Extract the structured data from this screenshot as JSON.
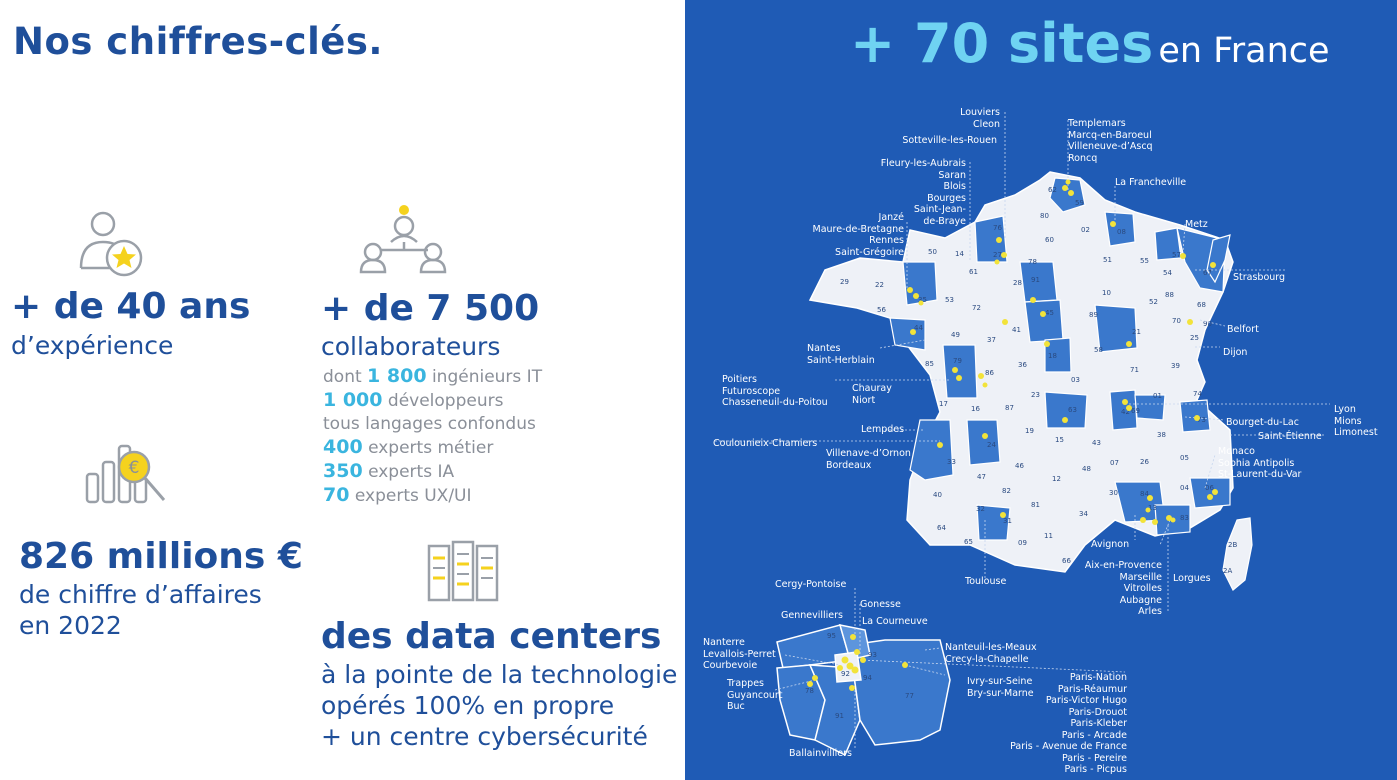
{
  "heading": "Nos chiffres-clés.",
  "stats": {
    "experience": {
      "big": "+ de 40 ans",
      "sub": "d’expérience",
      "icon": "user-star-icon"
    },
    "employees": {
      "big": "+ de 7 500",
      "sub": "collaborateurs",
      "icon": "team-network-icon",
      "details": [
        {
          "pre": "dont ",
          "num": "1 800",
          "text": " ingénieurs IT"
        },
        {
          "pre": "",
          "num": "1 000",
          "text": " développeurs"
        },
        {
          "pre": "",
          "num": "",
          "text": "tous langages confondus"
        },
        {
          "pre": "",
          "num": "400",
          "text": " experts métier"
        },
        {
          "pre": "",
          "num": "350",
          "text": " experts IA"
        },
        {
          "pre": "",
          "num": "70",
          "text": " experts UX/UI"
        }
      ]
    },
    "revenue": {
      "big": "826 millions €",
      "sub1": "de chiffre d’affaires",
      "sub2": "en 2022",
      "icon": "chart-euro-magnifier-icon"
    },
    "datacenters": {
      "big": "des data centers",
      "sub1": "à la pointe de la technologie",
      "sub2": "opérés 100% en propre",
      "sub3": "+ un centre cybersécurité",
      "icon": "server-rack-icon"
    }
  },
  "map": {
    "title_strong": "+ 70 sites",
    "title_light": "en France",
    "colors": {
      "background": "#1f5bb5",
      "region_light": "#eef1f7",
      "region_dark": "#3a78cc",
      "site": "#f2e33a",
      "accent": "#6fd3f2"
    },
    "departments": [
      "62",
      "59",
      "80",
      "76",
      "27",
      "60",
      "02",
      "08",
      "57",
      "67",
      "55",
      "51",
      "54",
      "88",
      "68",
      "14",
      "61",
      "50",
      "29",
      "22",
      "35",
      "56",
      "53",
      "72",
      "28",
      "78",
      "91",
      "45",
      "41",
      "10",
      "52",
      "89",
      "21",
      "70",
      "25",
      "90",
      "39",
      "71",
      "58",
      "18",
      "37",
      "49",
      "44",
      "85",
      "79",
      "86",
      "36",
      "03",
      "23",
      "87",
      "16",
      "17",
      "24",
      "19",
      "63",
      "15",
      "42",
      "69",
      "01",
      "74",
      "73",
      "38",
      "43",
      "07",
      "26",
      "05",
      "48",
      "04",
      "06",
      "83",
      "84",
      "13",
      "30",
      "12",
      "34",
      "46",
      "47",
      "33",
      "40",
      "64",
      "65",
      "32",
      "82",
      "81",
      "11",
      "09",
      "31",
      "66",
      "2B",
      "2A",
      "95",
      "93",
      "92",
      "94",
      "77"
    ],
    "labels": {
      "louviers": [
        "Louviers",
        "Cleon"
      ],
      "sotteville": [
        "Sotteville-les-Rouen"
      ],
      "templemars": [
        "Templemars",
        "Marcq-en-Baroeul",
        "Villeneuve-d’Ascq",
        "Roncq"
      ],
      "lafranche": [
        "La Francheville"
      ],
      "fleury": [
        "Fleury-les-Aubrais",
        "Saran",
        "Blois",
        "Bourges",
        "Saint-Jean-",
        "de-Braye"
      ],
      "janze": [
        "Janzé",
        "Maure-de-Bretagne",
        "Rennes",
        "Saint-Grégoire"
      ],
      "metz": [
        "Metz"
      ],
      "strasbourg": [
        "Strasbourg"
      ],
      "belfort": [
        "Belfort"
      ],
      "dijon": [
        "Dijon"
      ],
      "nantes": [
        "Nantes",
        "Saint-Herblain"
      ],
      "poitiers": [
        "Poitiers",
        "Futuroscope",
        "Chasseneuil-du-Poitou"
      ],
      "chauray": [
        "Chauray",
        "Niort"
      ],
      "lyon": [
        "Lyon",
        "Mions",
        "Limonest"
      ],
      "bourget": [
        "Bourget-du-Lac"
      ],
      "stetienne": [
        "Saint-Étienne"
      ],
      "lempdes": [
        "Lempdes"
      ],
      "coulounieix": [
        "Coulounieix-Chamiers"
      ],
      "villenave": [
        "Villenave-d’Ornon",
        "Bordeaux"
      ],
      "monaco": [
        "Monaco",
        "Sophia Antipolis",
        "St-Laurent-du-Var"
      ],
      "avignon": [
        "Avignon"
      ],
      "aix": [
        "Aix-en-Provence",
        "Marseille",
        "Vitrolles",
        "Aubagne",
        "Arles"
      ],
      "lorgues": [
        "Lorgues"
      ],
      "toulouse": [
        "Toulouse"
      ],
      "cergy": [
        "Cergy-Pontoise"
      ],
      "gonesse": [
        "Gonesse"
      ],
      "gennevilliers": [
        "Gennevilliers"
      ],
      "lacourneuve": [
        "La Courneuve"
      ],
      "nanterre": [
        "Nanterre",
        "Levallois-Perret",
        "Courbevoie"
      ],
      "nanteuil": [
        "Nanteuil-les-Meaux",
        "Crecy-la-Chapelle"
      ],
      "trappes": [
        "Trappes",
        "Guyancourt",
        "Buc"
      ],
      "ivry": [
        "Ivry-sur-Seine",
        "Bry-sur-Marne"
      ],
      "paris": [
        "Paris-Nation",
        "Paris-Réaumur",
        "Paris-Victor Hugo",
        "Paris-Drouot",
        "Paris-Kleber",
        "Paris - Arcade",
        "Paris - Avenue de France",
        "Paris - Pereire",
        "Paris - Picpus"
      ],
      "ballainvilliers": [
        "Ballainvilliers"
      ]
    }
  }
}
